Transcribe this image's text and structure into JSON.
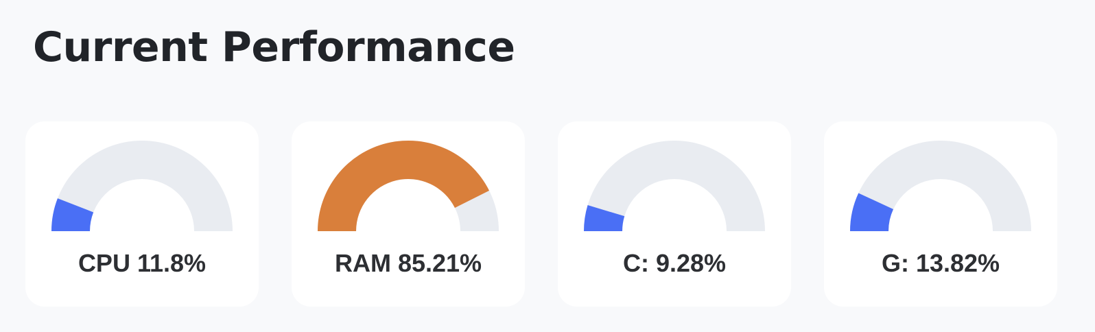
{
  "page": {
    "title": "Current Performance"
  },
  "colors": {
    "track": "#e9ecf1",
    "normal": "#4a6ff5",
    "warning": "#d97f3b"
  },
  "gauges": [
    {
      "label": "CPU 11.8%",
      "value": 11.8,
      "status": "normal"
    },
    {
      "label": "RAM 85.21%",
      "value": 85.21,
      "status": "warning"
    },
    {
      "label": "C: 9.28%",
      "value": 9.28,
      "status": "normal"
    },
    {
      "label": "G: 13.82%",
      "value": 13.82,
      "status": "normal"
    }
  ]
}
